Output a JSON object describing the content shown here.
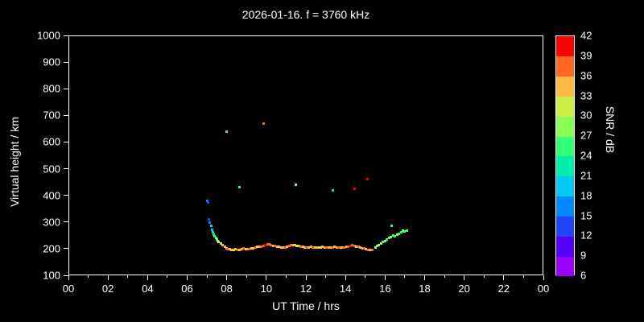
{
  "colors": {
    "background": "#000000",
    "foreground": "#ffffff"
  },
  "chart_data": {
    "type": "scatter",
    "title": "2026-01-16. f = 3760 kHz",
    "xlabel": "UT Time / hrs",
    "ylabel": "Virtual height / km",
    "xlim": [
      0,
      24
    ],
    "ylim": [
      100,
      1000
    ],
    "grid": false,
    "x_ticks": {
      "values": [
        0,
        2,
        4,
        6,
        8,
        10,
        12,
        14,
        16,
        18,
        20,
        22,
        24
      ],
      "labels": [
        "00",
        "02",
        "04",
        "06",
        "08",
        "10",
        "12",
        "14",
        "16",
        "18",
        "20",
        "22",
        "00"
      ],
      "minor_step": 1
    },
    "y_ticks": [
      100,
      200,
      300,
      400,
      500,
      600,
      700,
      800,
      900,
      1000
    ],
    "colorbar": {
      "label": "SNR / dB",
      "min": 6,
      "max": 42,
      "ticks": [
        6,
        9,
        12,
        15,
        18,
        21,
        24,
        27,
        30,
        33,
        36,
        39,
        42
      ],
      "band_colors": [
        "#9900ff",
        "#5500ff",
        "#2244ff",
        "#0088ff",
        "#00c8f0",
        "#00eeaa",
        "#33ff77",
        "#88ff55",
        "#ccee44",
        "#ffbb44",
        "#ff6622",
        "#ff0000"
      ]
    },
    "series_note": "points are [UT_hours, virtual_height_km, SNR_dB]",
    "points": [
      [
        7.0,
        380,
        15
      ],
      [
        7.05,
        372,
        12
      ],
      [
        7.1,
        310,
        12
      ],
      [
        7.15,
        298,
        15
      ],
      [
        7.2,
        285,
        18
      ],
      [
        7.25,
        272,
        18
      ],
      [
        7.3,
        262,
        21
      ],
      [
        7.35,
        254,
        21
      ],
      [
        7.4,
        246,
        24
      ],
      [
        7.45,
        240,
        24
      ],
      [
        7.5,
        234,
        27
      ],
      [
        7.55,
        229,
        27
      ],
      [
        7.6,
        224,
        30
      ],
      [
        7.7,
        218,
        30
      ],
      [
        7.8,
        213,
        33
      ],
      [
        7.9,
        207,
        33
      ],
      [
        8.0,
        202,
        33
      ],
      [
        8.05,
        199,
        36
      ],
      [
        8.15,
        197,
        33
      ],
      [
        8.25,
        195,
        33
      ],
      [
        8.35,
        196,
        30
      ],
      [
        8.45,
        197,
        33
      ],
      [
        8.55,
        195,
        36
      ],
      [
        8.65,
        196,
        33
      ],
      [
        8.75,
        198,
        33
      ],
      [
        8.85,
        200,
        36
      ],
      [
        8.95,
        199,
        33
      ],
      [
        9.05,
        198,
        33
      ],
      [
        9.15,
        199,
        36
      ],
      [
        9.25,
        200,
        33
      ],
      [
        9.35,
        202,
        33
      ],
      [
        9.45,
        204,
        36
      ],
      [
        9.55,
        206,
        33
      ],
      [
        9.65,
        207,
        33
      ],
      [
        9.75,
        206,
        36
      ],
      [
        9.85,
        209,
        36
      ],
      [
        9.95,
        213,
        39
      ],
      [
        10.05,
        216,
        36
      ],
      [
        10.15,
        215,
        36
      ],
      [
        10.25,
        213,
        36
      ],
      [
        10.35,
        211,
        33
      ],
      [
        10.45,
        209,
        36
      ],
      [
        10.55,
        207,
        33
      ],
      [
        10.65,
        206,
        33
      ],
      [
        10.75,
        205,
        33
      ],
      [
        10.85,
        204,
        33
      ],
      [
        10.95,
        205,
        36
      ],
      [
        11.05,
        207,
        33
      ],
      [
        11.15,
        209,
        36
      ],
      [
        11.25,
        212,
        36
      ],
      [
        11.35,
        214,
        33
      ],
      [
        11.45,
        213,
        33
      ],
      [
        11.55,
        211,
        30
      ],
      [
        11.65,
        209,
        33
      ],
      [
        11.75,
        208,
        36
      ],
      [
        11.85,
        206,
        33
      ],
      [
        11.95,
        205,
        33
      ],
      [
        12.05,
        204,
        36
      ],
      [
        12.15,
        205,
        33
      ],
      [
        12.25,
        206,
        33
      ],
      [
        12.35,
        205,
        36
      ],
      [
        12.45,
        204,
        33
      ],
      [
        12.55,
        203,
        33
      ],
      [
        12.65,
        204,
        33
      ],
      [
        12.75,
        205,
        30
      ],
      [
        12.85,
        206,
        33
      ],
      [
        12.95,
        205,
        33
      ],
      [
        13.05,
        204,
        36
      ],
      [
        13.15,
        203,
        33
      ],
      [
        13.25,
        204,
        33
      ],
      [
        13.35,
        205,
        36
      ],
      [
        13.45,
        206,
        33
      ],
      [
        13.55,
        205,
        33
      ],
      [
        13.65,
        204,
        36
      ],
      [
        13.75,
        203,
        33
      ],
      [
        13.85,
        204,
        33
      ],
      [
        13.95,
        205,
        36
      ],
      [
        14.05,
        206,
        33
      ],
      [
        14.15,
        208,
        36
      ],
      [
        14.25,
        210,
        39
      ],
      [
        14.35,
        212,
        36
      ],
      [
        14.45,
        210,
        36
      ],
      [
        14.55,
        208,
        33
      ],
      [
        14.65,
        206,
        36
      ],
      [
        14.75,
        204,
        33
      ],
      [
        14.85,
        202,
        33
      ],
      [
        14.95,
        200,
        36
      ],
      [
        15.05,
        198,
        33
      ],
      [
        15.15,
        196,
        36
      ],
      [
        15.25,
        195,
        33
      ],
      [
        15.35,
        196,
        36
      ],
      [
        15.5,
        204,
        30
      ],
      [
        15.6,
        209,
        27
      ],
      [
        15.7,
        214,
        27
      ],
      [
        15.8,
        219,
        27
      ],
      [
        15.9,
        224,
        24
      ],
      [
        16.0,
        229,
        27
      ],
      [
        16.1,
        234,
        24
      ],
      [
        16.2,
        239,
        24
      ],
      [
        16.3,
        244,
        27
      ],
      [
        16.35,
        285,
        24
      ],
      [
        16.4,
        249,
        24
      ],
      [
        16.5,
        247,
        24
      ],
      [
        16.6,
        252,
        27
      ],
      [
        16.7,
        257,
        24
      ],
      [
        16.8,
        261,
        24
      ],
      [
        16.9,
        267,
        27
      ],
      [
        17.0,
        264,
        24
      ],
      [
        17.1,
        269,
        24
      ],
      [
        8.0,
        640,
        24
      ],
      [
        8.65,
        432,
        24
      ],
      [
        9.85,
        668,
        38
      ],
      [
        11.5,
        440,
        27
      ],
      [
        13.35,
        420,
        21
      ],
      [
        14.45,
        425,
        41
      ],
      [
        15.1,
        460,
        41
      ]
    ]
  }
}
